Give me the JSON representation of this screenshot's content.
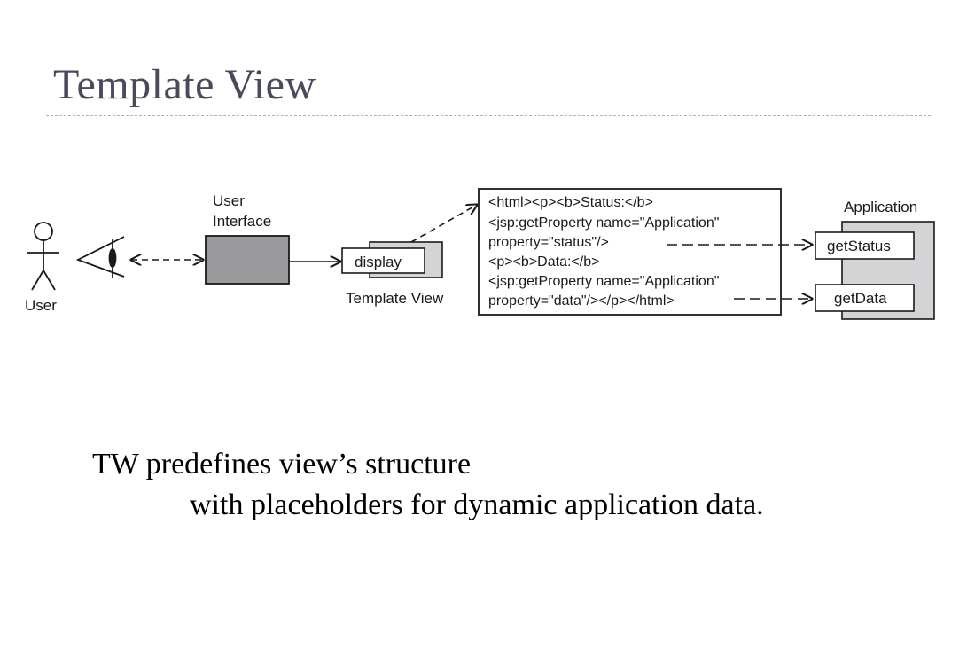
{
  "slide": {
    "title": "Template View"
  },
  "diagram": {
    "user_label": "User",
    "ui_label_line1": "User",
    "ui_label_line2": "Interface",
    "display_label": "display",
    "template_view_label": "Template View",
    "code_lines": [
      "<html><p><b>Status:</b>",
      "<jsp:getProperty name=\"Application\"",
      "property=\"status\"/>",
      "<p><b>Data:</b>",
      "<jsp:getProperty name=\"Application\"",
      "property=\"data\"/></p></html>"
    ],
    "application_label": "Application",
    "get_status_label": "getStatus",
    "get_data_label": "getData"
  },
  "caption": {
    "line1": "TW predefines view’s structure",
    "line2": "with placeholders for dynamic application data."
  }
}
